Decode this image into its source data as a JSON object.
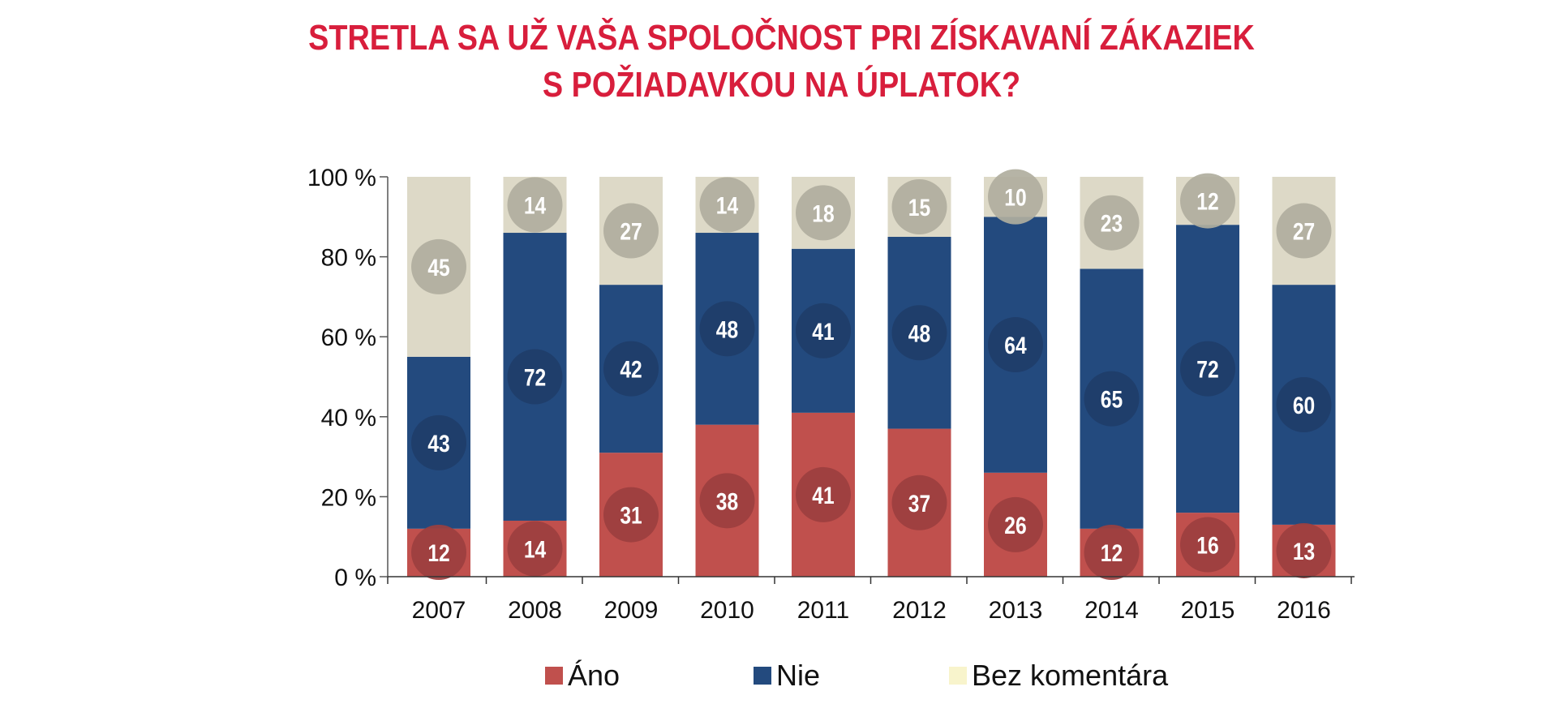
{
  "chart_data": {
    "type": "bar",
    "stacked": true,
    "title": "STRETLA SA UŽ VAŠA SPOLOČNOST PRI ZÍSKAVANÍ ZÁKAZIEK S POŽIADAVKOU NA ÚPLATOK?",
    "title_lines": [
      "STRETLA SA UŽ VAŠA SPOLOČNOST PRI ZÍSKAVANÍ ZÁKAZIEK",
      "S POŽIADAVKOU NA ÚPLATOK?"
    ],
    "categories": [
      "2007",
      "2008",
      "2009",
      "2010",
      "2011",
      "2012",
      "2013",
      "2014",
      "2015",
      "2016"
    ],
    "series": [
      {
        "name": "Áno",
        "color": "#c0504d",
        "label_color": "#9c3f3f",
        "values": [
          12,
          14,
          31,
          38,
          41,
          37,
          26,
          12,
          16,
          13
        ]
      },
      {
        "name": "Nie",
        "color": "#234a7e",
        "label_color": "#1f3d69",
        "values": [
          43,
          72,
          42,
          48,
          41,
          48,
          64,
          65,
          72,
          60
        ]
      },
      {
        "name": "Bez komentára",
        "color": "#ddd9c7",
        "legend_color": "#f8f4cc",
        "label_color": "#b0ae9e",
        "values": [
          45,
          14,
          27,
          14,
          18,
          15,
          10,
          23,
          12,
          27
        ]
      }
    ],
    "xlabel": "",
    "ylabel": "",
    "ylim": [
      0,
      100
    ],
    "yticks": [
      0,
      20,
      40,
      60,
      80,
      100
    ],
    "ytick_labels": [
      "0 %",
      "20 %",
      "40 %",
      "60 %",
      "80 %",
      "100 %"
    ],
    "grid": false,
    "legend_position": "bottom"
  }
}
